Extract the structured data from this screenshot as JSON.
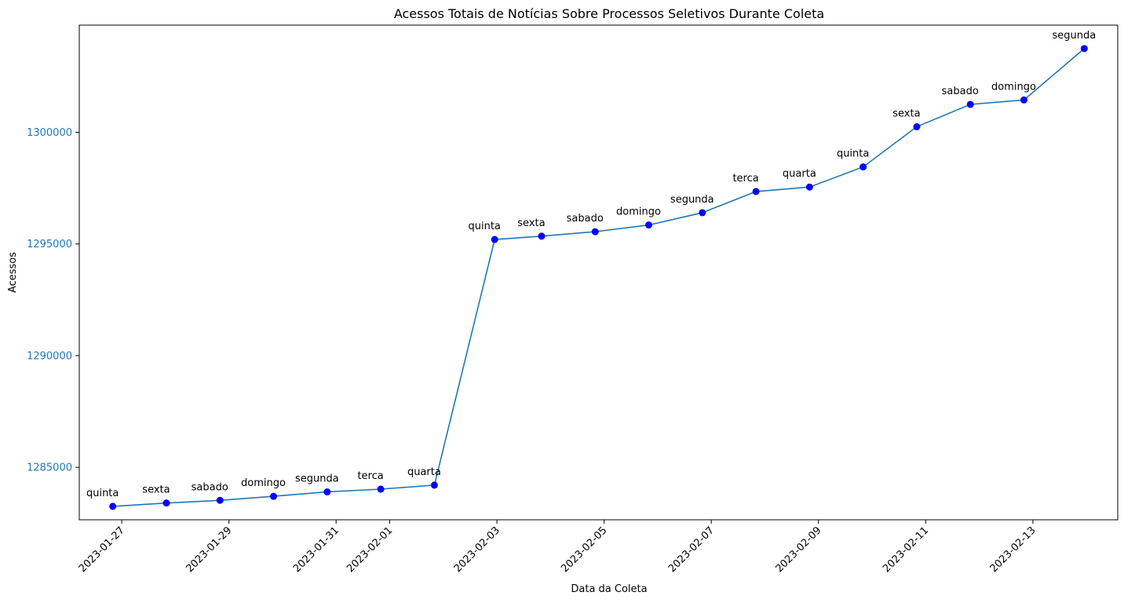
{
  "chart_data": {
    "type": "line",
    "title": "Acessos Totais de Notícias Sobre Processos Seletivos Durante Coleta",
    "xlabel": "Data da Coleta",
    "ylabel": "Acessos",
    "x": [
      "2023-01-26 20:00",
      "2023-01-27 20:00",
      "2023-01-28 20:00",
      "2023-01-29 20:00",
      "2023-01-30 20:00",
      "2023-01-31 20:00",
      "2023-02-01 20:00",
      "2023-02-02 23:00",
      "2023-02-03 20:00",
      "2023-02-04 20:00",
      "2023-02-05 20:00",
      "2023-02-06 20:00",
      "2023-02-07 20:00",
      "2023-02-08 20:00",
      "2023-02-09 20:00",
      "2023-02-10 20:00",
      "2023-02-11 20:00",
      "2023-02-12 20:00",
      "2023-02-13 23:00"
    ],
    "series": [
      {
        "values": [
          1283250,
          1283400,
          1283520,
          1283700,
          1283900,
          1284020,
          1284200,
          1295200,
          1295350,
          1295550,
          1295850,
          1296400,
          1297350,
          1297550,
          1298450,
          1300250,
          1301250,
          1301450,
          1303750
        ],
        "labels": [
          "quinta",
          "sexta",
          "sabado",
          "domingo",
          "segunda",
          "terca",
          "quarta",
          "quinta",
          "sexta",
          "sabado",
          "domingo",
          "segunda",
          "terca",
          "quarta",
          "quinta",
          "sexta",
          "sabado",
          "domingo",
          "segunda"
        ],
        "line_color": "#1f77b4",
        "marker_color": "#0000ff"
      }
    ],
    "xlim": [
      "2023-01-26 05:00",
      "2023-02-14 14:00"
    ],
    "ylim": [
      1282650,
      1304800
    ],
    "yticks": [
      1285000,
      1290000,
      1295000,
      1300000
    ],
    "ytick_labels": [
      "1285000",
      "1290000",
      "1295000",
      "1300000"
    ],
    "xticks": [
      "2023-01-27",
      "2023-01-29",
      "2023-01-31",
      "2023-02-01",
      "2023-02-03",
      "2023-02-05",
      "2023-02-07",
      "2023-02-09",
      "2023-02-11",
      "2023-02-13"
    ],
    "ytick_color": "#1f77b4",
    "grid": false,
    "legend": "none"
  }
}
